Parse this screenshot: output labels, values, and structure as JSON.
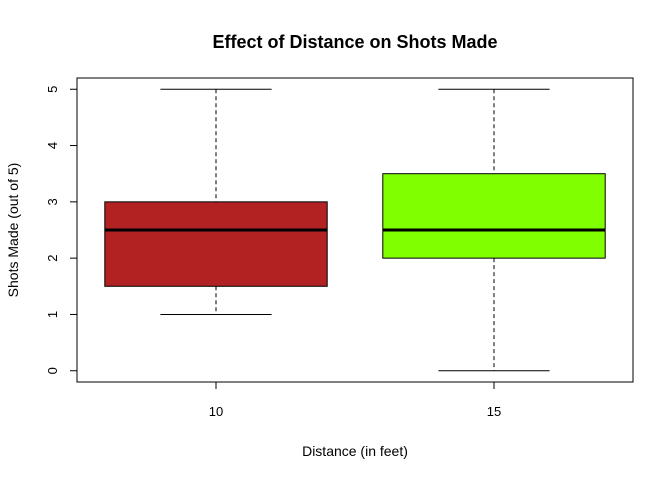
{
  "chart_data": {
    "type": "boxplot",
    "title": "Effect of Distance on Shots Made",
    "xlabel": "Distance (in feet)",
    "ylabel": "Shots Made (out of 5)",
    "ylim": [
      -0.2,
      5.2
    ],
    "yticks": [
      0,
      1,
      2,
      3,
      4,
      5
    ],
    "grid": false,
    "categories": [
      "10",
      "15"
    ],
    "boxes": [
      {
        "category": "10",
        "min": 1,
        "q1": 1.5,
        "median": 2.5,
        "q3": 3,
        "max": 5,
        "color": "#b22222"
      },
      {
        "category": "15",
        "min": 0,
        "q1": 2,
        "median": 2.5,
        "q3": 3.5,
        "max": 5,
        "color": "#7fff00"
      }
    ]
  }
}
